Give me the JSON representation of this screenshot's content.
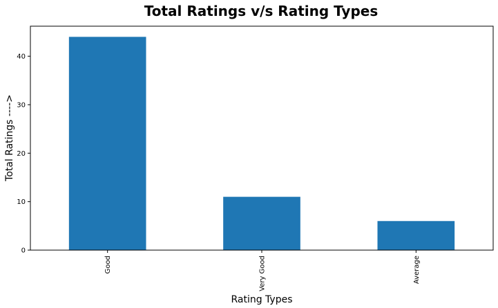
{
  "chart_data": {
    "type": "bar",
    "title": "Total Ratings v/s Rating Types",
    "xlabel": "Rating Types",
    "ylabel": "Total Ratings ---->",
    "categories": [
      "Good",
      "Very Good",
      "Average"
    ],
    "values": [
      44,
      11,
      6
    ],
    "ylim": [
      0,
      46.2
    ],
    "yticks": [
      "0",
      "10",
      "20",
      "30",
      "40"
    ],
    "bar_color": "#1f77b4",
    "grid": false,
    "legend": "none"
  }
}
